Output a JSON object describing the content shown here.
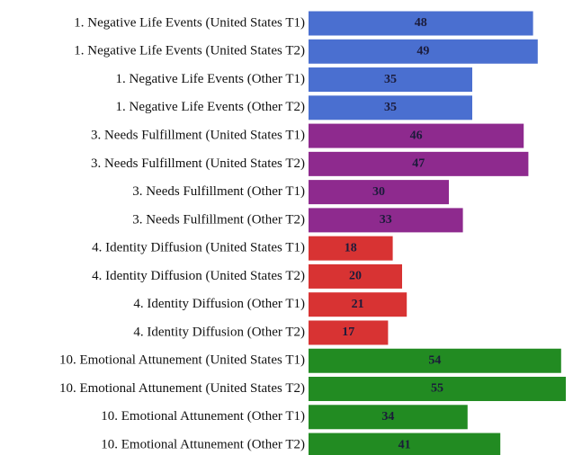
{
  "chart_data": {
    "type": "bar",
    "orientation": "horizontal",
    "categories": [
      "1. Negative Life Events (United States T1)",
      "1. Negative Life Events (United States T2)",
      "1. Negative Life Events (Other T1)",
      "1. Negative Life Events (Other T2)",
      "3. Needs Fulfillment (United States T1)",
      "3. Needs Fulfillment (United States T2)",
      "3. Needs Fulfillment (Other T1)",
      "3. Needs Fulfillment (Other T2)",
      "4. Identity Diffusion (United States T1)",
      "4. Identity Diffusion (United States T2)",
      "4. Identity Diffusion (Other T1)",
      "4. Identity Diffusion (Other T2)",
      "10. Emotional Attunement (United States T1)",
      "10. Emotional Attunement (United States T2)",
      "10. Emotional Attunement (Other T1)",
      "10. Emotional Attunement (Other T2)"
    ],
    "values": [
      48,
      49,
      35,
      35,
      46,
      47,
      30,
      33,
      18,
      20,
      21,
      17,
      54,
      55,
      34,
      41
    ],
    "colors": [
      "#4a6fd0",
      "#4a6fd0",
      "#4a6fd0",
      "#4a6fd0",
      "#8e2a8e",
      "#8e2a8e",
      "#8e2a8e",
      "#8e2a8e",
      "#d83333",
      "#d83333",
      "#d83333",
      "#d83333",
      "#228b22",
      "#228b22",
      "#228b22",
      "#228b22"
    ]
  }
}
